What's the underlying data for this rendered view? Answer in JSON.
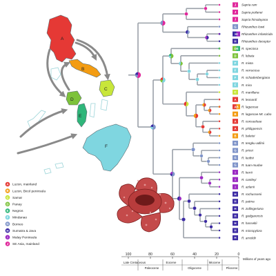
{
  "colors": {
    "A": "#e53935",
    "B": "#f39c12",
    "C": "#c8e63a",
    "D": "#7dc23a",
    "E": "#2fb67a",
    "F": "#7fd6e0",
    "G": "#7f94c9",
    "H": "#3b2aa3",
    "I": "#9b2ac2",
    "J": "#e0289b",
    "branch": "#9aa0a8",
    "arrow": "#8a8a8a"
  },
  "map": {
    "regions": [
      {
        "label": "A",
        "color": "A"
      },
      {
        "label": "B",
        "color": "B"
      },
      {
        "label": "C",
        "color": "C"
      },
      {
        "label": "D",
        "color": "D"
      },
      {
        "label": "E",
        "color": "E"
      },
      {
        "label": "F",
        "color": "F"
      }
    ]
  },
  "legend": [
    {
      "letter": "A",
      "label": "Luzon, mainland",
      "color": "A"
    },
    {
      "letter": "B",
      "label": "Luzon, Bicol peninsula",
      "color": "B"
    },
    {
      "letter": "C",
      "label": "Samar",
      "color": "C"
    },
    {
      "letter": "D",
      "label": "Panay",
      "color": "D"
    },
    {
      "letter": "E",
      "label": "Negros",
      "color": "E"
    },
    {
      "letter": "F",
      "label": "Mindanao",
      "color": "F"
    },
    {
      "letter": "G",
      "label": "Borneo",
      "color": "G"
    },
    {
      "letter": "H",
      "label": "Sumatra & Java",
      "color": "H"
    },
    {
      "letter": "I",
      "label": "Malay Peninsula",
      "color": "I"
    },
    {
      "letter": "J",
      "label": "SE Asia, mainland",
      "color": "J"
    }
  ],
  "tips": [
    {
      "code": "J",
      "name": "Sapria ram",
      "colors": [
        "J"
      ]
    },
    {
      "code": "J",
      "name": "Sapria poilanei",
      "colors": [
        "J"
      ]
    },
    {
      "code": "J",
      "name": "Sapria himalayana",
      "colors": [
        "J"
      ]
    },
    {
      "code": "G",
      "name": "Rhizanthes lowii",
      "colors": [
        "G"
      ]
    },
    {
      "code": "HI",
      "name": "Rhizanthes infanticida",
      "colors": [
        "H",
        "I"
      ]
    },
    {
      "code": "H",
      "name": "Rhizanthes deceptor",
      "colors": [
        "H"
      ]
    },
    {
      "code": "DE",
      "name": "R. speciosa",
      "colors": [
        "D",
        "E"
      ]
    },
    {
      "code": "D",
      "name": "R. lobata",
      "colors": [
        "D"
      ]
    },
    {
      "code": "F",
      "name": "R. mixta",
      "colors": [
        "F"
      ]
    },
    {
      "code": "F",
      "name": "R. verrucosa",
      "colors": [
        "F"
      ]
    },
    {
      "code": "F",
      "name": "R. schadenbergiana",
      "colors": [
        "F"
      ]
    },
    {
      "code": "F",
      "name": "R. mira",
      "colors": [
        "F"
      ]
    },
    {
      "code": "C",
      "name": "R. manillana",
      "colors": [
        "C"
      ]
    },
    {
      "code": "A",
      "name": "R. leonardi",
      "colors": [
        "A"
      ]
    },
    {
      "code": "AB",
      "name": "R. lagascae",
      "colors": [
        "A",
        "B"
      ]
    },
    {
      "code": "B",
      "name": "R. lagascae Mt. Labo",
      "colors": [
        "B"
      ]
    },
    {
      "code": "A",
      "name": "R. consueloae",
      "colors": [
        "A"
      ]
    },
    {
      "code": "A",
      "name": "R. philippensis",
      "colors": [
        "A"
      ]
    },
    {
      "code": "B",
      "name": "R. baletei",
      "colors": [
        "B"
      ]
    },
    {
      "code": "G",
      "name": "R. tengku-adlinii",
      "colors": [
        "G"
      ]
    },
    {
      "code": "G",
      "name": "R. pricei",
      "colors": [
        "G"
      ]
    },
    {
      "code": "G",
      "name": "R. keithii",
      "colors": [
        "G"
      ]
    },
    {
      "code": "G",
      "name": "R. tuan-mudae",
      "colors": [
        "G"
      ]
    },
    {
      "code": "I",
      "name": "R. kerrii",
      "colors": [
        "I"
      ]
    },
    {
      "code": "I",
      "name": "R. cantleyi",
      "colors": [
        "I"
      ]
    },
    {
      "code": "I",
      "name": "R. azlanii",
      "colors": [
        "I"
      ]
    },
    {
      "code": "H",
      "name": "R. rochussenii",
      "colors": [
        "H"
      ]
    },
    {
      "code": "H",
      "name": "R. patma",
      "colors": [
        "H"
      ]
    },
    {
      "code": "H",
      "name": "R. zollingeriana",
      "colors": [
        "H"
      ]
    },
    {
      "code": "H",
      "name": "R. gadgarensis",
      "colors": [
        "H"
      ]
    },
    {
      "code": "H",
      "name": "R. hasseltii",
      "colors": [
        "H"
      ]
    },
    {
      "code": "H",
      "name": "R. micropylora",
      "colors": [
        "H"
      ]
    },
    {
      "code": "H",
      "name": "R. arnoldii",
      "colors": [
        "H"
      ]
    }
  ],
  "axis": {
    "ticks": [
      "100",
      "80",
      "60",
      "40",
      "20",
      "0"
    ],
    "unit_label": "Millions of years ago",
    "epochs_top": [
      "Late Cretaceous",
      "Eocene",
      "Miocene"
    ],
    "epochs_bottom": [
      "Paleocene",
      "Oligocene",
      "Pliocene"
    ]
  }
}
